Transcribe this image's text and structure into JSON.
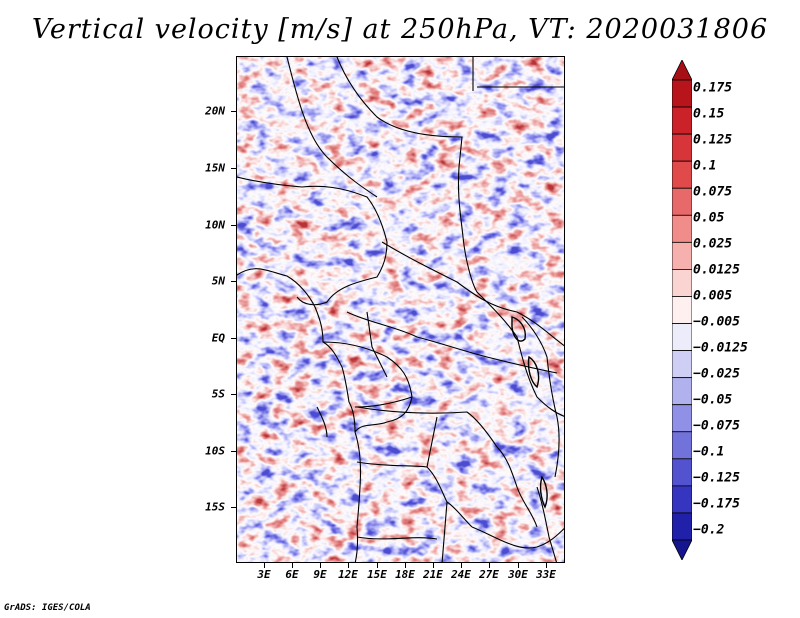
{
  "title": "Vertical velocity [m/s] at 250hPa, VT: 2020031806",
  "footer": "GrADS: IGES/COLA",
  "map": {
    "region": "Central Africa",
    "lat_range": [
      -19.5,
      25
    ],
    "lon_range": [
      0,
      35
    ],
    "lat_labels": [
      {
        "text": "20N",
        "lat": 20
      },
      {
        "text": "15N",
        "lat": 15
      },
      {
        "text": "10N",
        "lat": 10
      },
      {
        "text": "5N",
        "lat": 5
      },
      {
        "text": "EQ",
        "lat": 0
      },
      {
        "text": "5S",
        "lat": -5
      },
      {
        "text": "10S",
        "lat": -10
      },
      {
        "text": "15S",
        "lat": -15
      }
    ],
    "lon_labels": [
      {
        "text": "3E",
        "lon": 3
      },
      {
        "text": "6E",
        "lon": 6
      },
      {
        "text": "9E",
        "lon": 9
      },
      {
        "text": "12E",
        "lon": 12
      },
      {
        "text": "15E",
        "lon": 15
      },
      {
        "text": "18E",
        "lon": 18
      },
      {
        "text": "21E",
        "lon": 21
      },
      {
        "text": "24E",
        "lon": 24
      },
      {
        "text": "27E",
        "lon": 27
      },
      {
        "text": "30E",
        "lon": 30
      },
      {
        "text": "33E",
        "lon": 33
      }
    ]
  },
  "colorbar": {
    "units": "m/s",
    "levels": [
      {
        "label": "0.175"
      },
      {
        "label": "0.15"
      },
      {
        "label": "0.125"
      },
      {
        "label": "0.1"
      },
      {
        "label": "0.075"
      },
      {
        "label": "0.05"
      },
      {
        "label": "0.025"
      },
      {
        "label": "0.0125"
      },
      {
        "label": "0.005"
      },
      {
        "label": "−0.005"
      },
      {
        "label": "−0.0125"
      },
      {
        "label": "−0.025"
      },
      {
        "label": "−0.05"
      },
      {
        "label": "−0.075"
      },
      {
        "label": "−0.1"
      },
      {
        "label": "−0.125"
      },
      {
        "label": "−0.175"
      },
      {
        "label": "−0.2"
      }
    ],
    "colors": [
      "#a50f15",
      "#b8141c",
      "#cb2229",
      "#d8353a",
      "#e04a4a",
      "#e8696a",
      "#f08c8a",
      "#f6b0ad",
      "#fad4d1",
      "#fdf0ef",
      "#ececfb",
      "#cfcff5",
      "#b1b1ee",
      "#9090e6",
      "#7272db",
      "#5353cf",
      "#3535bf",
      "#2020a8",
      "#15158f"
    ]
  }
}
